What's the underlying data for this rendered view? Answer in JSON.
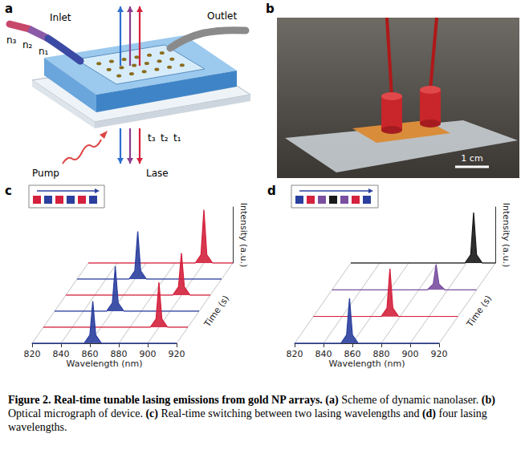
{
  "figure": {
    "a": {
      "label": "a",
      "inlet": "Inlet",
      "outlet": "Outlet",
      "n": [
        "n₃",
        "n₂",
        "n₁"
      ],
      "t": [
        "t₃",
        "t₂",
        "t₁"
      ],
      "pump": "Pump",
      "lase": "Lase"
    },
    "b": {
      "label": "b",
      "scale_bar": "1 cm"
    },
    "caption": {
      "title": "Figure 2. Real-time tunable lasing emissions from gold NP arrays.",
      "parts": [
        [
          "(a)",
          "Scheme of dynamic nanolaser."
        ],
        [
          "(b)",
          "Optical micrograph of device."
        ],
        [
          "(c)",
          "Real-time switching between two lasing wavelengths and"
        ],
        [
          "(d)",
          "four lasing wavelengths."
        ]
      ]
    }
  },
  "chart_data": [
    {
      "panel": "c",
      "type": "line",
      "x_label": "Wavelength (nm)",
      "y_label": "Intensity (a.u.)",
      "z_label": "Time (s)",
      "xlim": [
        820,
        920
      ],
      "xticks": [
        820,
        840,
        860,
        880,
        900,
        920
      ],
      "ylim": [
        0,
        1
      ],
      "tick_labels": "x",
      "inset": {
        "colors": [
          "#d4213d",
          "#2b3f9e",
          "#d4213d",
          "#2b3f9e",
          "#d4213d",
          "#2b3f9e"
        ]
      },
      "series": [
        {
          "color": "#2b3f9e",
          "x": [
            820,
            856,
            860,
            862,
            864,
            868,
            920
          ],
          "values": [
            0,
            0,
            0.15,
            0.75,
            0.15,
            0,
            0
          ]
        },
        {
          "color": "#d4213d",
          "x": [
            820,
            894,
            898,
            900,
            902,
            906,
            920
          ],
          "values": [
            0,
            0,
            0.15,
            0.8,
            0.15,
            0,
            0
          ]
        },
        {
          "color": "#2b3f9e",
          "x": [
            820,
            856,
            860,
            862,
            864,
            868,
            920
          ],
          "values": [
            0,
            0,
            0.15,
            0.8,
            0.15,
            0,
            0
          ]
        },
        {
          "color": "#d4213d",
          "x": [
            820,
            894,
            898,
            900,
            902,
            906,
            920
          ],
          "values": [
            0,
            0,
            0.15,
            0.75,
            0.15,
            0,
            0
          ]
        },
        {
          "color": "#2b3f9e",
          "x": [
            820,
            856,
            860,
            862,
            864,
            868,
            920
          ],
          "values": [
            0,
            0,
            0.15,
            0.85,
            0.15,
            0,
            0
          ]
        },
        {
          "color": "#d4213d",
          "x": [
            820,
            894,
            898,
            900,
            902,
            906,
            920
          ],
          "values": [
            0,
            0,
            0.15,
            0.95,
            0.15,
            0,
            0
          ]
        }
      ]
    },
    {
      "panel": "d",
      "type": "line",
      "x_label": "Wavelength (nm)",
      "y_label": "Intensity (a.u.)",
      "z_label": "Time (s)",
      "xlim": [
        820,
        920
      ],
      "xticks": [
        820,
        840,
        860,
        880,
        900,
        920
      ],
      "ylim": [
        0,
        1
      ],
      "tick_labels": "x",
      "inset": {
        "colors": [
          "#2b3f9e",
          "#d4213d",
          "#7a4fa0",
          "#1a1a1a",
          "#7a4fa0",
          "#d4213d",
          "#2b3f9e"
        ]
      },
      "series": [
        {
          "color": "#2b3f9e",
          "x": [
            820,
            852,
            856,
            858,
            860,
            864,
            920
          ],
          "values": [
            0,
            0,
            0.15,
            0.8,
            0.15,
            0,
            0
          ]
        },
        {
          "color": "#d4213d",
          "x": [
            820,
            867,
            871,
            873,
            875,
            879,
            920
          ],
          "values": [
            0,
            0,
            0.15,
            0.85,
            0.15,
            0,
            0
          ]
        },
        {
          "color": "#7a4fa0",
          "x": [
            820,
            886,
            890,
            892,
            894,
            898,
            920
          ],
          "values": [
            0,
            0,
            0.1,
            0.45,
            0.1,
            0,
            0
          ]
        },
        {
          "color": "#1a1a1a",
          "x": [
            820,
            899,
            903,
            905,
            907,
            911,
            920
          ],
          "values": [
            0,
            0,
            0.15,
            0.9,
            0.15,
            0,
            0
          ]
        }
      ]
    }
  ]
}
